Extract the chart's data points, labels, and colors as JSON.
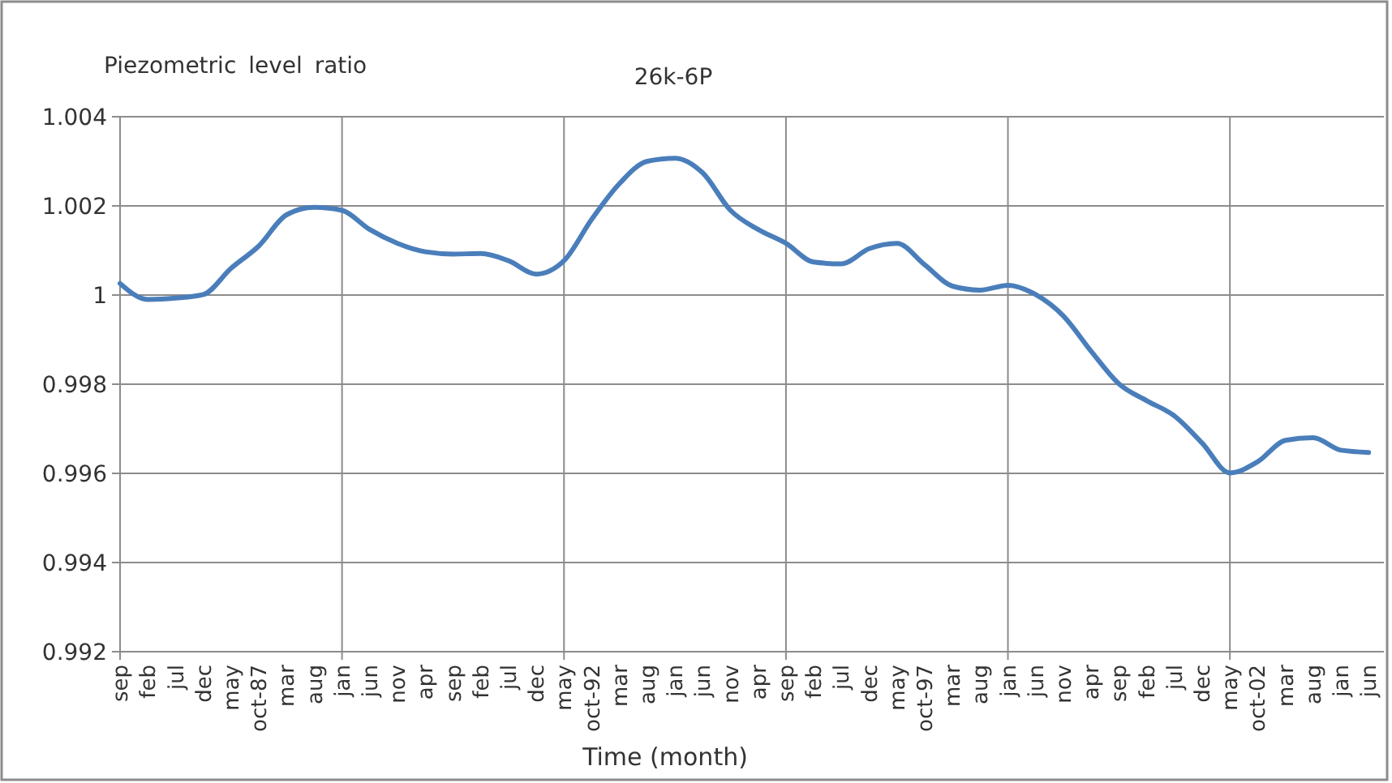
{
  "chart_data": {
    "type": "line",
    "title": "26k-6P",
    "ylabel": "Piezometric level ratio",
    "xlabel": "Time (month)",
    "categories": [
      "sep",
      "feb",
      "jul",
      "dec",
      "may",
      "oct-87",
      "mar",
      "aug",
      "jan",
      "jun",
      "nov",
      "apr",
      "sep",
      "feb",
      "jul",
      "dec",
      "may",
      "oct-92",
      "mar",
      "aug",
      "jan",
      "jun",
      "nov",
      "apr",
      "sep",
      "feb",
      "jul",
      "dec",
      "may",
      "oct-97",
      "mar",
      "aug",
      "jan",
      "jun",
      "nov",
      "apr",
      "sep",
      "feb",
      "jul",
      "dec",
      "may",
      "oct-02",
      "mar",
      "aug",
      "jan",
      "jun"
    ],
    "series": [
      {
        "color": "#4a7ebb",
        "values": [
          1.00026,
          0.9999,
          0.99993,
          1.00001,
          1.0006,
          1.0011,
          1.0018,
          1.00197,
          1.0019,
          1.00147,
          1.00116,
          1.00097,
          1.00092,
          1.00093,
          1.00077,
          1.00047,
          1.00077,
          1.0017,
          1.0025,
          1.003,
          1.00307,
          1.00274,
          1.0019,
          1.00147,
          1.00116,
          1.00074,
          1.0007,
          1.00104,
          1.00116,
          1.00068,
          1.0002,
          1.00011,
          1.00022,
          1.00001,
          0.99953,
          0.99874,
          0.99801,
          0.99763,
          0.99729,
          0.99668,
          0.99601,
          0.99626,
          0.99674,
          0.9968,
          0.99652,
          0.99647
        ]
      }
    ],
    "ylim": [
      0.992,
      1.004
    ],
    "yticks": [
      0.992,
      0.994,
      0.996,
      0.998,
      1,
      1.002,
      1.004
    ],
    "grid": true,
    "marker": "none",
    "line_style": "solid"
  }
}
